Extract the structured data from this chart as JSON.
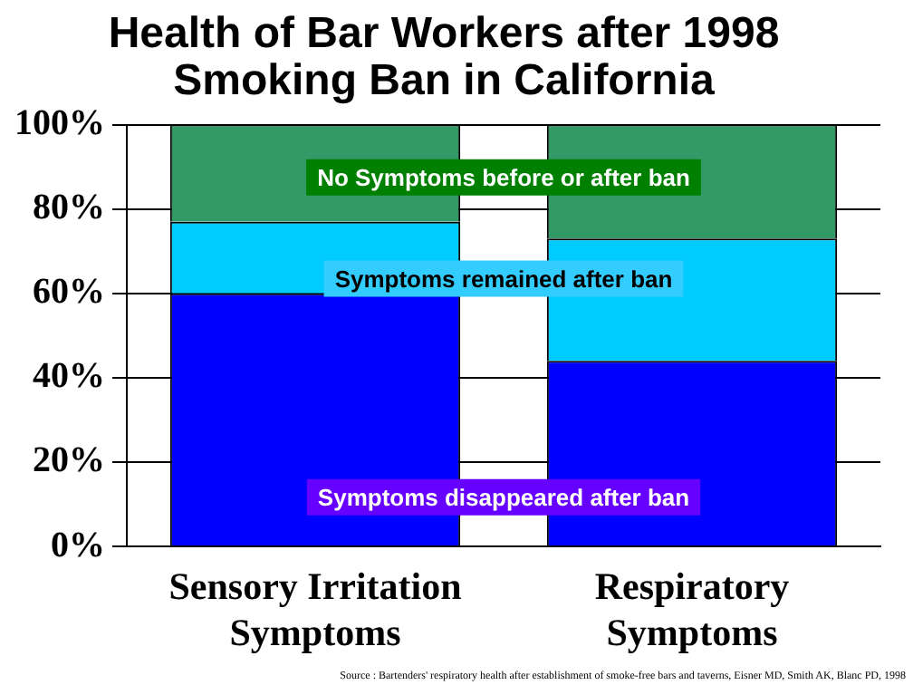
{
  "chart_data": {
    "type": "bar",
    "stacked": true,
    "title": "Health of Bar Workers after 1998 Smoking Ban in California",
    "categories": [
      "Sensory Irritation Symptoms",
      "Respiratory Symptoms"
    ],
    "series": [
      {
        "name": "Symptoms disappeared after ban",
        "color": "#0000ff",
        "values": [
          60,
          44
        ]
      },
      {
        "name": "Symptoms remained after ban",
        "color": "#00ccff",
        "values": [
          17,
          29
        ]
      },
      {
        "name": "No Symptoms before or after ban",
        "color": "#339966",
        "values": [
          23,
          27
        ]
      }
    ],
    "ylim": [
      0,
      100
    ],
    "yticks": [
      {
        "value": 0,
        "label": "0%"
      },
      {
        "value": 20,
        "label": "20%"
      },
      {
        "value": 40,
        "label": "40%"
      },
      {
        "value": 60,
        "label": "60%"
      },
      {
        "value": 80,
        "label": "80%"
      },
      {
        "value": 100,
        "label": "100%"
      }
    ],
    "grid": "y",
    "legend": false,
    "annotations": [
      "Source : Bartenders' respiratory health after establishment of smoke-free bars and taverns, Eisner MD, Smith AK, Blanc PD, 1998"
    ]
  }
}
